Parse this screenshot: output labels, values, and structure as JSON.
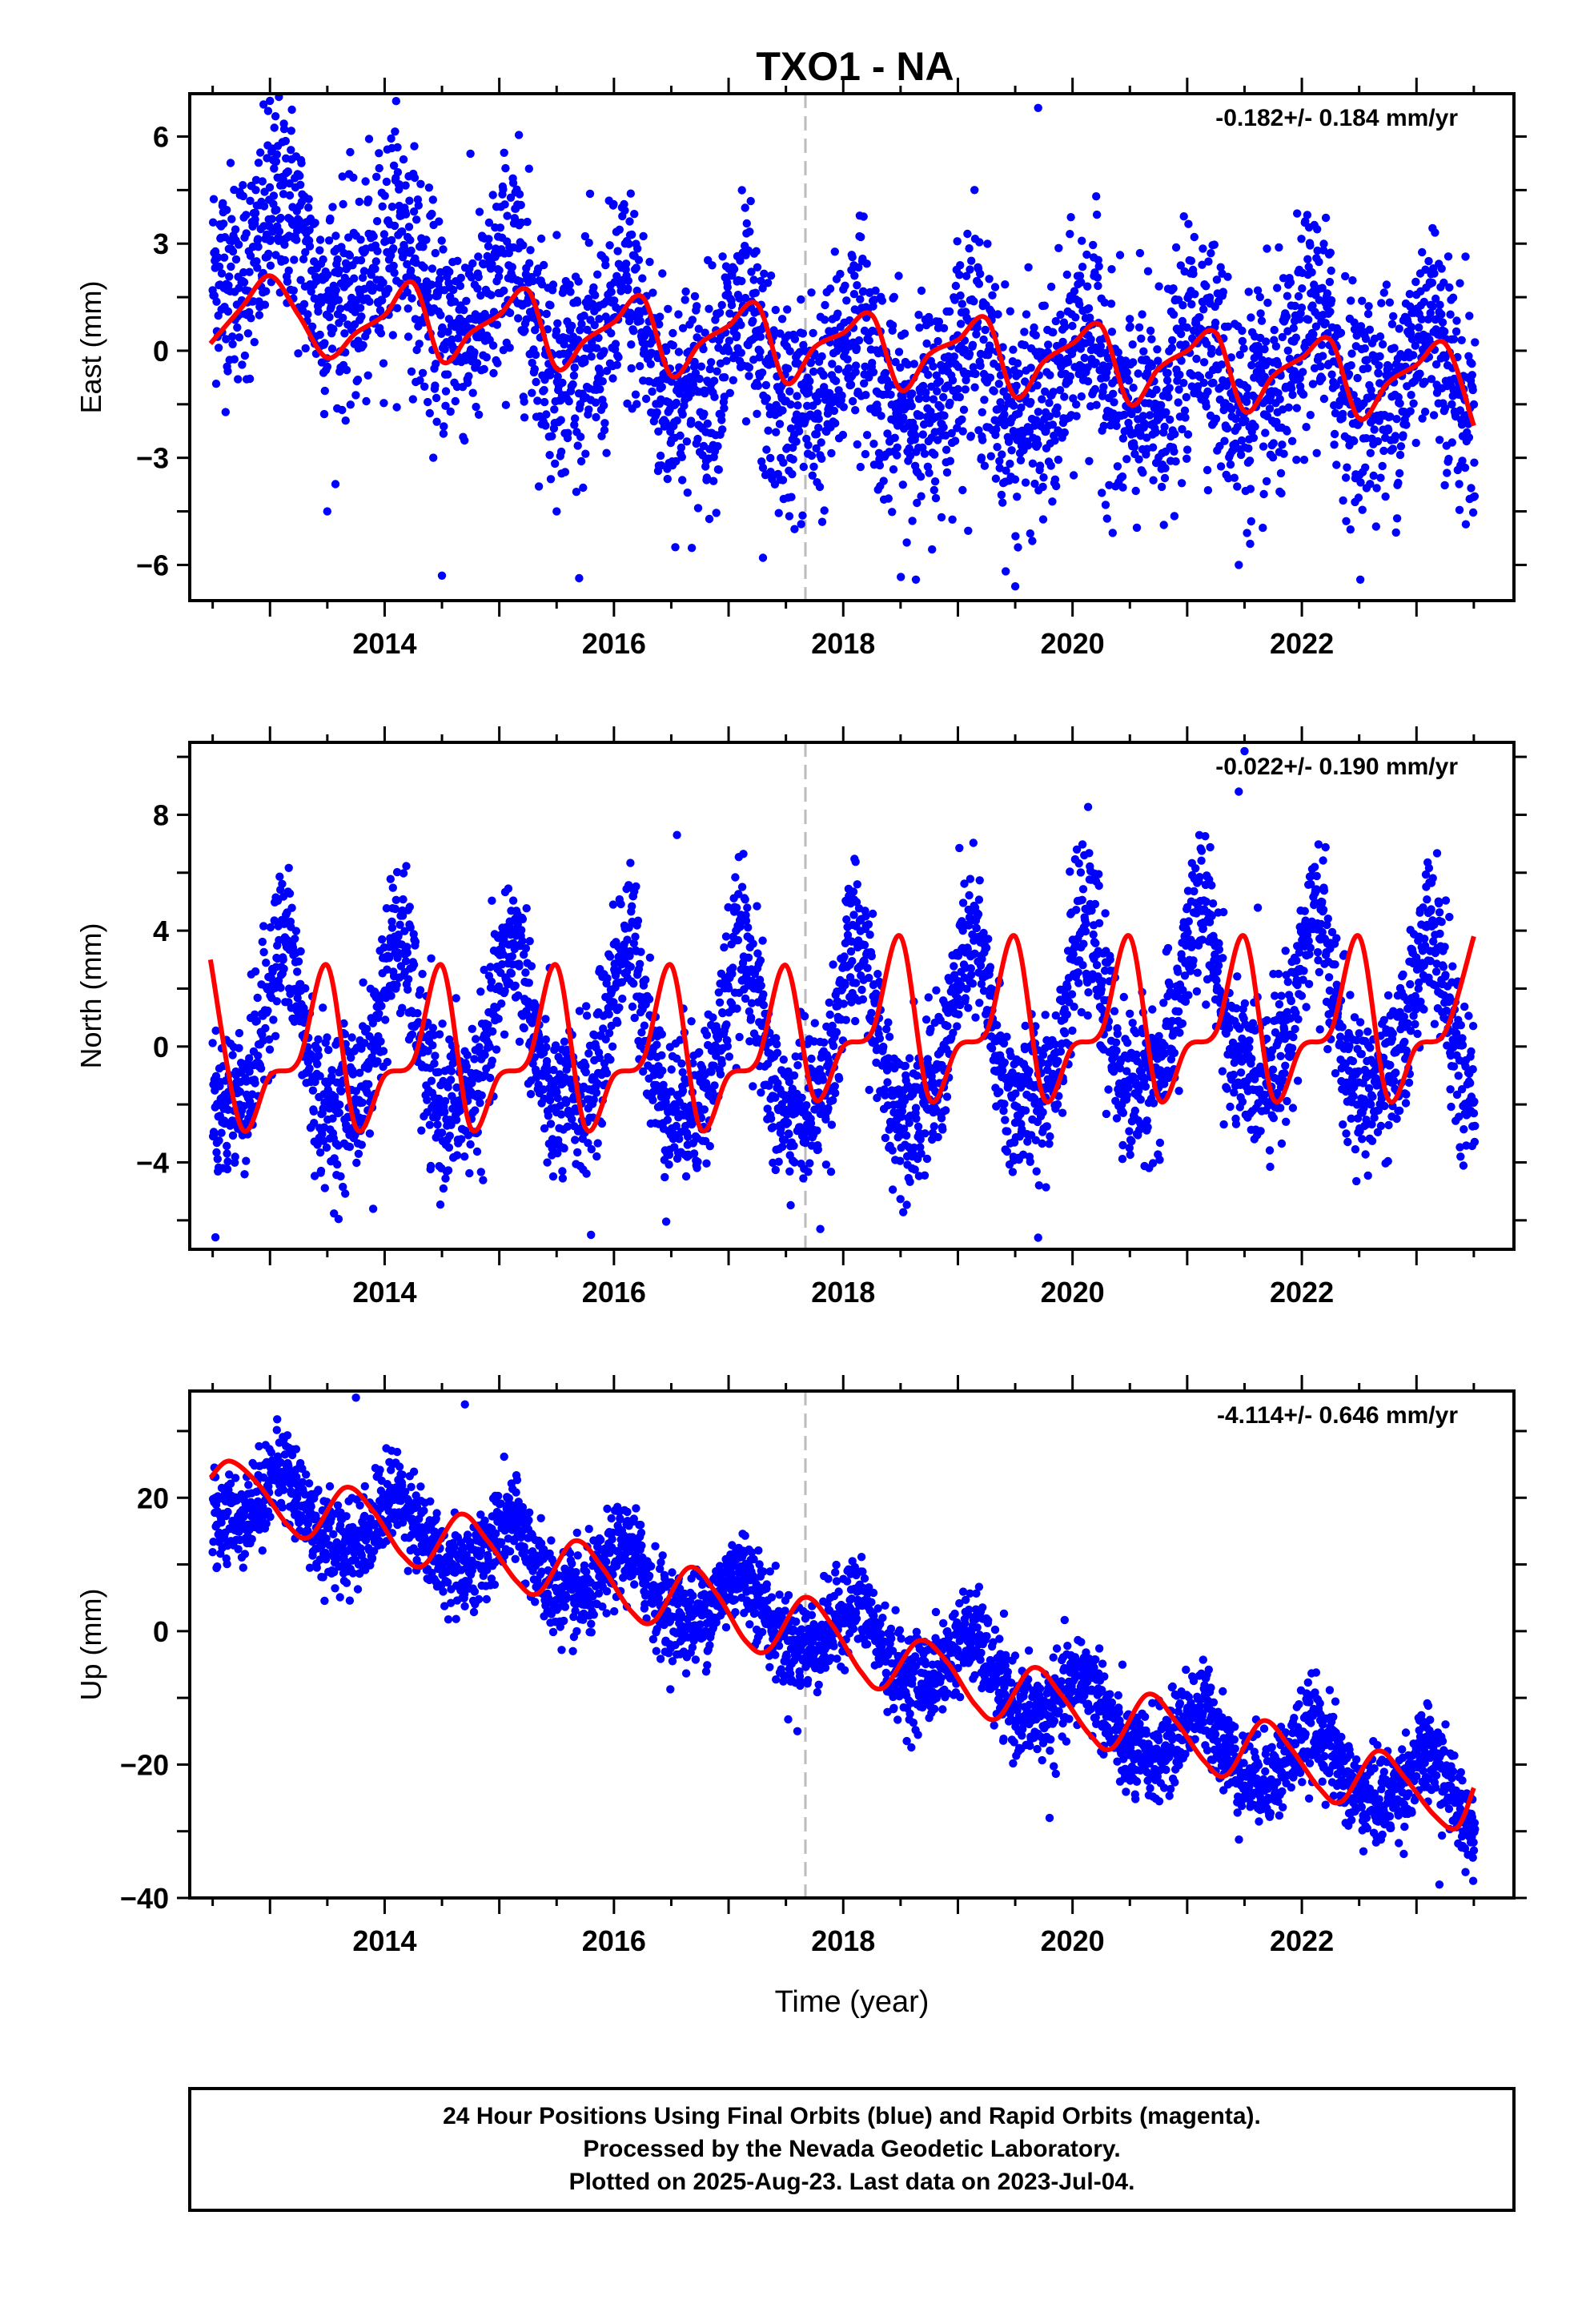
{
  "title": "TXO1 - NA",
  "footer": {
    "lines": [
      "24 Hour Positions Using Final Orbits (blue) and Rapid Orbits (magenta).",
      "Processed by the Nevada Geodetic Laboratory.",
      "Plotted on 2025-Aug-23. Last data on 2023-Jul-04."
    ]
  },
  "colors": {
    "points": "#0000ff",
    "model": "#ff0000",
    "event_line": "#bbbbbb",
    "frame": "#000000"
  },
  "chart_data": [
    {
      "type": "scatter",
      "panel": "east",
      "ylabel": "East (mm)",
      "xlabel": "",
      "rate_label": "-0.182+/- 0.184 mm/yr",
      "xlim": [
        2012.3,
        2023.85
      ],
      "ylim": [
        -7,
        7.2
      ],
      "xticks": [
        2014,
        2016,
        2018,
        2020,
        2022
      ],
      "xtick_labels": [
        "2014",
        "2016",
        "2018",
        "2020",
        "2022"
      ],
      "yticks": [
        -6,
        -3,
        0,
        3,
        6
      ],
      "ytick_labels": [
        "−6",
        "−3",
        "0",
        "3",
        "6"
      ],
      "event_line_x": 2017.67,
      "series": [
        {
          "role": "observations",
          "x_range": [
            2012.5,
            2023.51
          ],
          "trend": [
            3.1,
            2.4,
            1.6,
            0.6,
            -0.3,
            -0.8,
            -0.9,
            -1.0,
            -0.9,
            -0.7,
            -0.5,
            -0.8
          ],
          "annual_amplitude": 1.2,
          "annual_phase_deg": 0,
          "semiannual_amplitude": 0.4,
          "noise_sd": 1.5,
          "outliers": [
            [
              2019.5,
              -6.6
            ],
            [
              2017.3,
              -5.8
            ],
            [
              2014.5,
              -6.3
            ],
            [
              2021.45,
              -6.0
            ],
            [
              2019.7,
              6.8
            ],
            [
              2013.0,
              7.0
            ],
            [
              2015.5,
              -4.5
            ],
            [
              2013.5,
              -4.5
            ]
          ]
        },
        {
          "role": "model",
          "x": [
            2012.48,
            2012.75,
            2013.0,
            2013.25,
            2013.5,
            2013.75,
            2014.0,
            2014.25,
            2014.5,
            2014.75,
            2015.0,
            2015.25,
            2015.5,
            2015.75,
            2016.0,
            2016.25,
            2016.5,
            2016.75,
            2017.0,
            2017.25,
            2017.5,
            2017.75,
            2018.0,
            2018.25,
            2018.5,
            2018.75,
            2019.0,
            2019.25,
            2019.5,
            2019.75,
            2020.0,
            2020.25,
            2020.5,
            2020.75,
            2021.0,
            2021.25,
            2021.5,
            2021.75,
            2022.0,
            2022.25,
            2022.5,
            2022.75,
            2023.0,
            2023.25,
            2023.5
          ],
          "y": [
            0.2,
            1.2,
            2.1,
            1.0,
            -0.2,
            0.5,
            1.0,
            1.9,
            -0.3,
            0.5,
            1.0,
            1.7,
            -0.5,
            0.3,
            0.8,
            1.5,
            -0.7,
            0.2,
            0.7,
            1.3,
            -0.9,
            0.1,
            0.5,
            1.0,
            -1.1,
            -0.1,
            0.3,
            0.9,
            -1.3,
            -0.3,
            0.2,
            0.7,
            -1.5,
            -0.5,
            0.0,
            0.5,
            -1.7,
            -0.7,
            -0.2,
            0.3,
            -1.9,
            -0.9,
            -0.4,
            0.2,
            -2.1
          ]
        }
      ]
    },
    {
      "type": "scatter",
      "panel": "north",
      "ylabel": "North (mm)",
      "xlabel": "",
      "rate_label": "-0.022+/- 0.190 mm/yr",
      "xlim": [
        2012.3,
        2023.85
      ],
      "ylim": [
        -7,
        10.5
      ],
      "xticks": [
        2014,
        2016,
        2018,
        2020,
        2022
      ],
      "xtick_labels": [
        "2014",
        "2016",
        "2018",
        "2020",
        "2022"
      ],
      "yticks": [
        -4,
        0,
        4,
        8
      ],
      "ytick_labels": [
        "−4",
        "0",
        "4",
        "8"
      ],
      "event_line_x": 2017.67,
      "series": [
        {
          "role": "observations",
          "x_range": [
            2012.5,
            2023.51
          ],
          "trend": [
            0.0,
            0.0,
            0.0,
            0.0,
            0.0,
            -0.2,
            0.0,
            0.2,
            0.8,
            1.3,
            0.6,
            0.2
          ],
          "annual_amplitude": 2.8,
          "annual_phase_deg": 0,
          "semiannual_amplitude": 0.8,
          "noise_sd": 1.3,
          "outliers": [
            [
              2021.5,
              10.2
            ],
            [
              2021.45,
              8.8
            ],
            [
              2019.7,
              -6.6
            ],
            [
              2015.8,
              -6.5
            ],
            [
              2017.8,
              -6.3
            ],
            [
              2016.55,
              7.3
            ],
            [
              2013.9,
              -5.6
            ]
          ]
        },
        {
          "role": "model",
          "x": [
            2012.48,
            2012.75,
            2013.0,
            2013.25,
            2013.5,
            2013.75,
            2014.0,
            2014.25,
            2014.5,
            2014.75,
            2015.0,
            2015.25,
            2015.5,
            2015.75,
            2016.0,
            2016.25,
            2016.5,
            2016.75,
            2017.0,
            2017.25,
            2017.5,
            2017.75,
            2018.0,
            2018.25,
            2018.5,
            2018.75,
            2019.0,
            2019.25,
            2019.5,
            2019.75,
            2020.0,
            2020.25,
            2020.5,
            2020.75,
            2021.0,
            2021.25,
            2021.5,
            2021.75,
            2022.0,
            2022.25,
            2022.5,
            2022.75,
            2023.0,
            2023.25,
            2023.5
          ],
          "y": [
            3.0,
            -2.8,
            -1.0,
            -0.5,
            2.8,
            -2.8,
            -1.0,
            -0.5,
            2.8,
            -2.8,
            -1.0,
            -0.5,
            2.8,
            -2.8,
            -1.0,
            -0.5,
            2.8,
            -2.8,
            -1.0,
            -0.5,
            2.8,
            -1.8,
            0.0,
            0.5,
            3.8,
            -1.8,
            0.0,
            0.5,
            3.8,
            -1.8,
            0.0,
            0.5,
            3.8,
            -1.8,
            0.0,
            0.5,
            3.8,
            -1.8,
            0.0,
            0.5,
            3.8,
            -1.8,
            0.0,
            0.5,
            3.8
          ]
        }
      ]
    },
    {
      "type": "scatter",
      "panel": "up",
      "ylabel": "Up (mm)",
      "xlabel": "Time (year)",
      "rate_label": "-4.114+/- 0.646 mm/yr",
      "xlim": [
        2012.3,
        2023.85
      ],
      "ylim": [
        -40,
        36
      ],
      "xticks": [
        2014,
        2016,
        2018,
        2020,
        2022
      ],
      "xtick_labels": [
        "2014",
        "2016",
        "2018",
        "2020",
        "2022"
      ],
      "yticks": [
        -40,
        -20,
        0,
        20
      ],
      "ytick_labels": [
        "−40",
        "−20",
        "0",
        "20"
      ],
      "event_line_x": 2017.67,
      "series": [
        {
          "role": "observations",
          "x_range": [
            2012.5,
            2023.51
          ],
          "trend": [
            21,
            17,
            14,
            9,
            6,
            2,
            -3,
            -8,
            -15,
            -18,
            -21,
            -26
          ],
          "annual_amplitude": 4.5,
          "annual_phase_deg": 0,
          "semiannual_amplitude": 0.8,
          "noise_sd": 3.4,
          "outliers": [
            [
              2013.75,
              35.0
            ],
            [
              2014.7,
              34.0
            ],
            [
              2023.2,
              -38.0
            ],
            [
              2017.6,
              -15.0
            ],
            [
              2019.8,
              -28.0
            ]
          ]
        },
        {
          "role": "model",
          "x": [
            2012.48,
            2012.65,
            2012.9,
            2013.15,
            2013.35,
            2013.65,
            2013.9,
            2014.15,
            2014.35,
            2014.65,
            2014.9,
            2015.15,
            2015.35,
            2015.65,
            2015.9,
            2016.15,
            2016.35,
            2016.65,
            2016.9,
            2017.15,
            2017.35,
            2017.65,
            2017.9,
            2018.15,
            2018.35,
            2018.65,
            2018.9,
            2019.15,
            2019.35,
            2019.65,
            2019.9,
            2020.15,
            2020.35,
            2020.65,
            2020.9,
            2021.15,
            2021.35,
            2021.65,
            2021.9,
            2022.15,
            2022.35,
            2022.65,
            2022.9,
            2023.15,
            2023.35,
            2023.5
          ],
          "y": [
            23.0,
            25.5,
            22.0,
            16.0,
            14.2,
            21.5,
            18.0,
            11.5,
            10.0,
            17.5,
            13.5,
            7.5,
            5.8,
            13.5,
            9.5,
            3.0,
            1.5,
            9.5,
            5.5,
            -1.5,
            -2.8,
            5.0,
            1.0,
            -6.0,
            -8.5,
            -1.5,
            -4.5,
            -11.0,
            -13.0,
            -5.5,
            -9.5,
            -15.5,
            -17.5,
            -9.5,
            -13.5,
            -19.5,
            -21.5,
            -13.5,
            -17.5,
            -23.5,
            -25.5,
            -18.0,
            -22.0,
            -27.5,
            -29.5,
            -23.5
          ]
        }
      ]
    }
  ]
}
